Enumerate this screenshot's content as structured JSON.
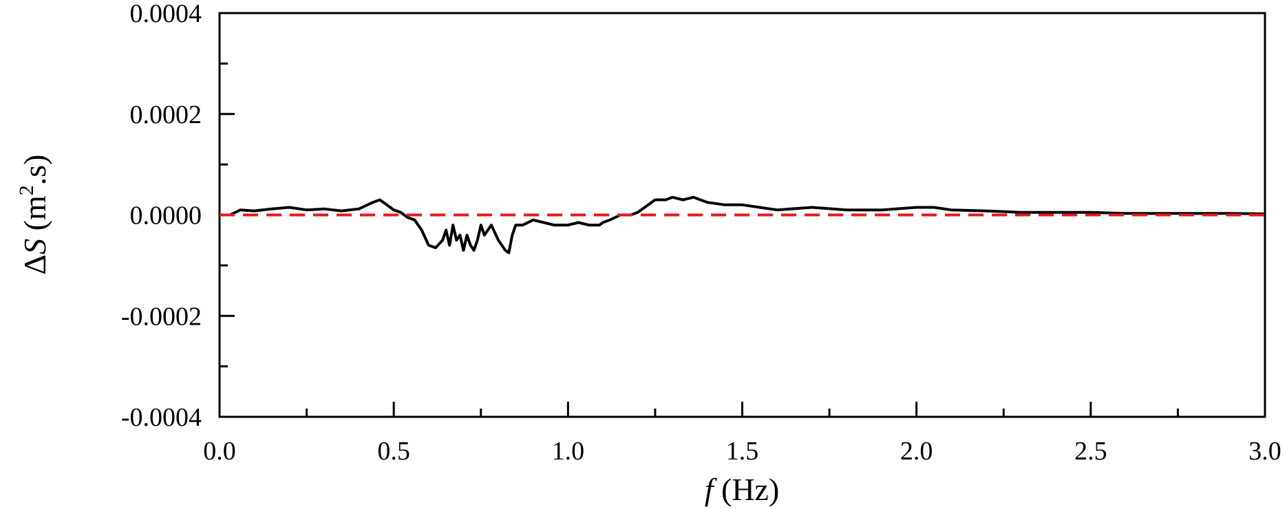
{
  "chart_data": {
    "type": "line",
    "xlabel": {
      "var": "f",
      "unit": " (Hz)"
    },
    "ylabel": {
      "delta": "Δ",
      "var": "S",
      "unit": " (m",
      "sup": "2",
      "unit_tail": ".s)"
    },
    "xlim": [
      0,
      3
    ],
    "ylim": [
      -0.0004,
      0.0004
    ],
    "x_ticks": [
      "0.0",
      "0.5",
      "1.0",
      "1.5",
      "2.0",
      "2.5",
      "3.0"
    ],
    "x_tick_values": [
      0,
      0.5,
      1.0,
      1.5,
      2.0,
      2.5,
      3.0
    ],
    "x_minor_ticks": [
      0.25,
      0.75,
      1.25,
      1.75,
      2.25,
      2.75
    ],
    "y_ticks": [
      "0.0004",
      "0.0002",
      "0.0000",
      "-0.0002",
      "-0.0004"
    ],
    "y_tick_values": [
      0.0004,
      0.0002,
      0,
      -0.0002,
      -0.0004
    ],
    "y_minor_ticks": [
      0.0003,
      0.0001,
      -0.0001,
      -0.0003
    ],
    "grid": false,
    "series": [
      {
        "style": "solid",
        "color": "#000000",
        "x": [
          0.0,
          0.03,
          0.06,
          0.1,
          0.15,
          0.2,
          0.25,
          0.3,
          0.35,
          0.4,
          0.44,
          0.46,
          0.48,
          0.5,
          0.52,
          0.54,
          0.56,
          0.58,
          0.6,
          0.62,
          0.64,
          0.65,
          0.66,
          0.67,
          0.68,
          0.69,
          0.7,
          0.71,
          0.72,
          0.73,
          0.74,
          0.75,
          0.76,
          0.77,
          0.78,
          0.8,
          0.81,
          0.82,
          0.83,
          0.84,
          0.85,
          0.87,
          0.9,
          0.93,
          0.96,
          1.0,
          1.03,
          1.06,
          1.09,
          1.1,
          1.12,
          1.15,
          1.18,
          1.2,
          1.22,
          1.25,
          1.28,
          1.3,
          1.33,
          1.36,
          1.38,
          1.4,
          1.45,
          1.5,
          1.55,
          1.6,
          1.7,
          1.8,
          1.9,
          2.0,
          2.05,
          2.1,
          2.2,
          2.3,
          2.4,
          2.5,
          2.6,
          2.7,
          2.8,
          2.9,
          3.0
        ],
        "y": [
          0.0,
          0.0,
          1e-05,
          8e-06,
          1.2e-05,
          1.5e-05,
          1e-05,
          1.2e-05,
          8e-06,
          1.2e-05,
          2.5e-05,
          3e-05,
          2e-05,
          1e-05,
          5e-06,
          -5e-06,
          -1e-05,
          -3e-05,
          -6e-05,
          -6.5e-05,
          -5e-05,
          -3e-05,
          -6e-05,
          -2e-05,
          -5e-05,
          -4e-05,
          -7e-05,
          -4e-05,
          -6e-05,
          -7e-05,
          -5e-05,
          -2e-05,
          -4e-05,
          -3e-05,
          -2e-05,
          -5e-05,
          -6e-05,
          -7e-05,
          -7.5e-05,
          -4e-05,
          -2e-05,
          -2e-05,
          -1e-05,
          -1.5e-05,
          -2e-05,
          -2e-05,
          -1.5e-05,
          -2e-05,
          -2e-05,
          -1.5e-05,
          -1e-05,
          0.0,
          0.0,
          5e-06,
          1.5e-05,
          3e-05,
          3e-05,
          3.5e-05,
          3e-05,
          3.5e-05,
          3e-05,
          2.5e-05,
          2e-05,
          2e-05,
          1.5e-05,
          1e-05,
          1.5e-05,
          1e-05,
          1e-05,
          1.5e-05,
          1.5e-05,
          1e-05,
          8e-06,
          5e-06,
          5e-06,
          5e-06,
          3e-06,
          3e-06,
          3e-06,
          3e-06,
          2e-06
        ]
      },
      {
        "style": "dashed",
        "color": "#e31a1c",
        "x": [
          0,
          3
        ],
        "y": [
          0,
          0
        ]
      }
    ]
  }
}
